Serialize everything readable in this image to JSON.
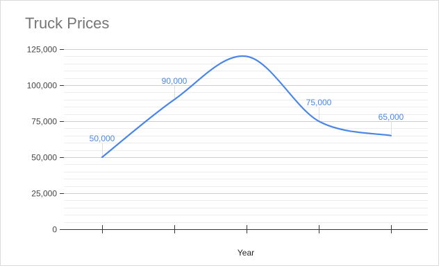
{
  "chart_data": {
    "type": "line",
    "title": "Truck Prices",
    "xlabel": "Year",
    "ylabel": "",
    "categories": [
      "",
      "",
      "",
      "",
      ""
    ],
    "series": [
      {
        "values": [
          50000,
          90000,
          120000,
          75000,
          65000
        ]
      }
    ],
    "data_labels": [
      "50,000",
      "90,000",
      "",
      "75,000",
      "65,000"
    ],
    "y_ticks": [
      0,
      25000,
      50000,
      75000,
      100000,
      125000
    ],
    "y_tick_labels": [
      "0",
      "25,000",
      "50,000",
      "75,000",
      "100,000",
      "125,000"
    ],
    "ylim": [
      0,
      125000
    ],
    "smooth": true,
    "grid": true,
    "legend": "none",
    "colors": {
      "line": "#4a86e8",
      "label": "#4a86e8",
      "grid_major": "#cccccc",
      "grid_minor": "#ececec",
      "axis": "#333333"
    }
  }
}
